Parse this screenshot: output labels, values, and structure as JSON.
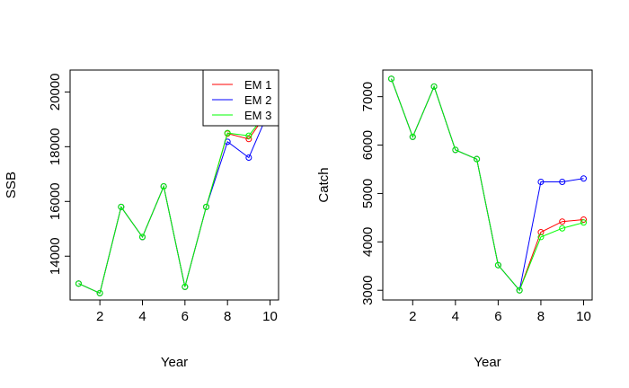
{
  "chart_data": [
    {
      "type": "line",
      "xlabel": "Year",
      "ylabel": "SSB",
      "xlim": [
        0.6,
        10.4
      ],
      "ylim": [
        12400,
        20800
      ],
      "x_ticks": [
        2,
        4,
        6,
        8,
        10
      ],
      "y_ticks": [
        14000,
        16000,
        18000,
        20000
      ],
      "grid": false,
      "legend": "top-right",
      "series": [
        {
          "name": "EM 1",
          "color": "#ff0000",
          "x": [
            1,
            2,
            3,
            4,
            5,
            6,
            7,
            8,
            9,
            10
          ],
          "y": [
            13000,
            12650,
            15800,
            14700,
            16550,
            12880,
            15800,
            18480,
            18280,
            19400
          ]
        },
        {
          "name": "EM 2",
          "color": "#0000ff",
          "x": [
            1,
            2,
            3,
            4,
            5,
            6,
            7,
            8,
            9,
            10
          ],
          "y": [
            13000,
            12650,
            15800,
            14700,
            16550,
            12880,
            15800,
            18180,
            17600,
            19400
          ]
        },
        {
          "name": "EM 3",
          "color": "#00ff00",
          "x": [
            1,
            2,
            3,
            4,
            5,
            6,
            7,
            8,
            9,
            10
          ],
          "y": [
            13000,
            12650,
            15800,
            14700,
            16550,
            12880,
            15800,
            18500,
            18400,
            19400
          ]
        }
      ]
    },
    {
      "type": "line",
      "xlabel": "Year",
      "ylabel": "Catch",
      "xlim": [
        0.6,
        10.4
      ],
      "ylim": [
        2800,
        7550
      ],
      "x_ticks": [
        2,
        4,
        6,
        8,
        10
      ],
      "y_ticks": [
        3000,
        4000,
        5000,
        6000,
        7000
      ],
      "grid": false,
      "legend": "none",
      "series": [
        {
          "name": "EM 1",
          "color": "#ff0000",
          "x": [
            1,
            2,
            3,
            4,
            5,
            6,
            7,
            8,
            9,
            10
          ],
          "y": [
            7370,
            6170,
            7210,
            5900,
            5710,
            3520,
            3000,
            4200,
            4420,
            4460
          ]
        },
        {
          "name": "EM 2",
          "color": "#0000ff",
          "x": [
            1,
            2,
            3,
            4,
            5,
            6,
            7,
            8,
            9,
            10
          ],
          "y": [
            7370,
            6170,
            7210,
            5900,
            5710,
            3520,
            3000,
            5240,
            5240,
            5310
          ]
        },
        {
          "name": "EM 3",
          "color": "#00ff00",
          "x": [
            1,
            2,
            3,
            4,
            5,
            6,
            7,
            8,
            9,
            10
          ],
          "y": [
            7370,
            6170,
            7210,
            5900,
            5710,
            3520,
            3000,
            4100,
            4280,
            4400
          ]
        }
      ]
    }
  ]
}
